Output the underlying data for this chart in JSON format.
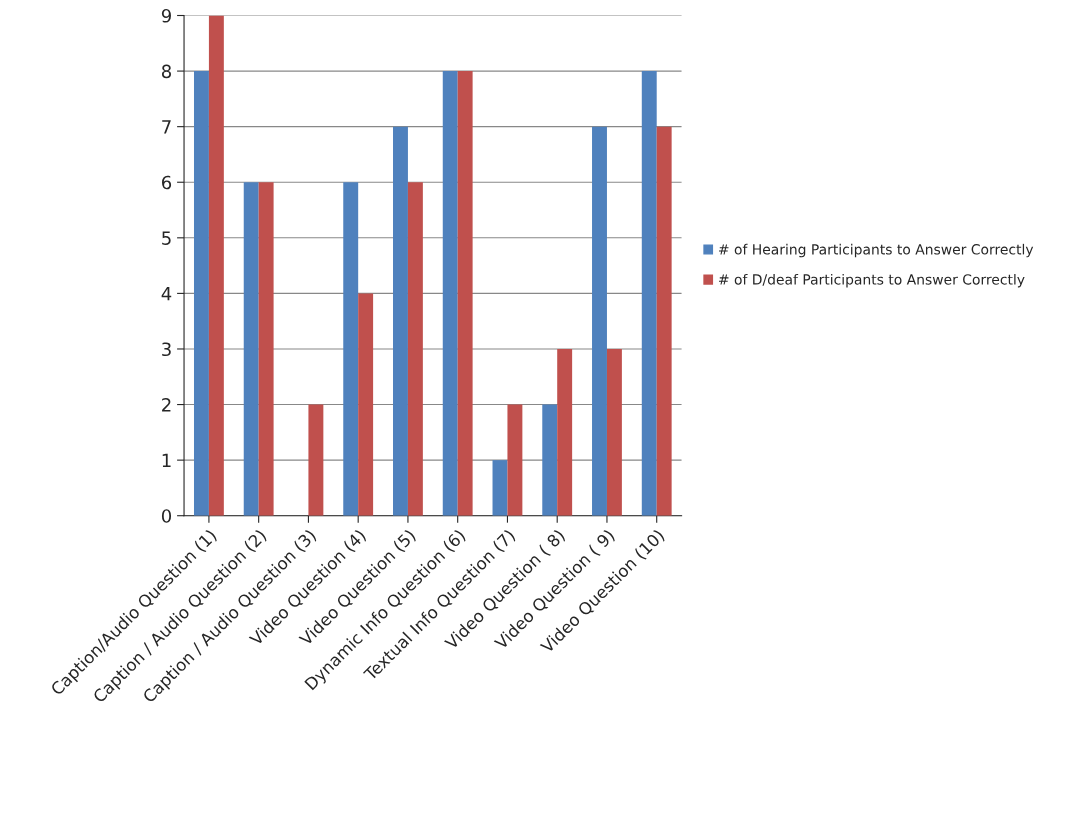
{
  "chart_data": {
    "type": "bar",
    "categories": [
      "Caption/Audio Question (1)",
      "Caption / Audio Question (2)",
      "Caption / Audio Question (3)",
      "Video Question (4)",
      "Video Question (5)",
      "Dynamic Info Question (6)",
      "Textual Info Question (7)",
      "Video Question ( 8)",
      "Video Question ( 9)",
      "Video Question (10)"
    ],
    "series": [
      {
        "name": "# of Hearing Participants to Answer Correctly",
        "color": "#4f81bd",
        "values": [
          8,
          6,
          0,
          6,
          7,
          8,
          1,
          2,
          7,
          8
        ]
      },
      {
        "name": "# of D/deaf Participants to Answer Correctly",
        "color": "#c0504d",
        "values": [
          9,
          6,
          2,
          4,
          6,
          8,
          2,
          3,
          3,
          7
        ]
      }
    ],
    "ylim": [
      0,
      9
    ],
    "yticks": [
      0,
      1,
      2,
      3,
      4,
      5,
      6,
      7,
      8,
      9
    ],
    "grid": "y",
    "legend": "right"
  }
}
